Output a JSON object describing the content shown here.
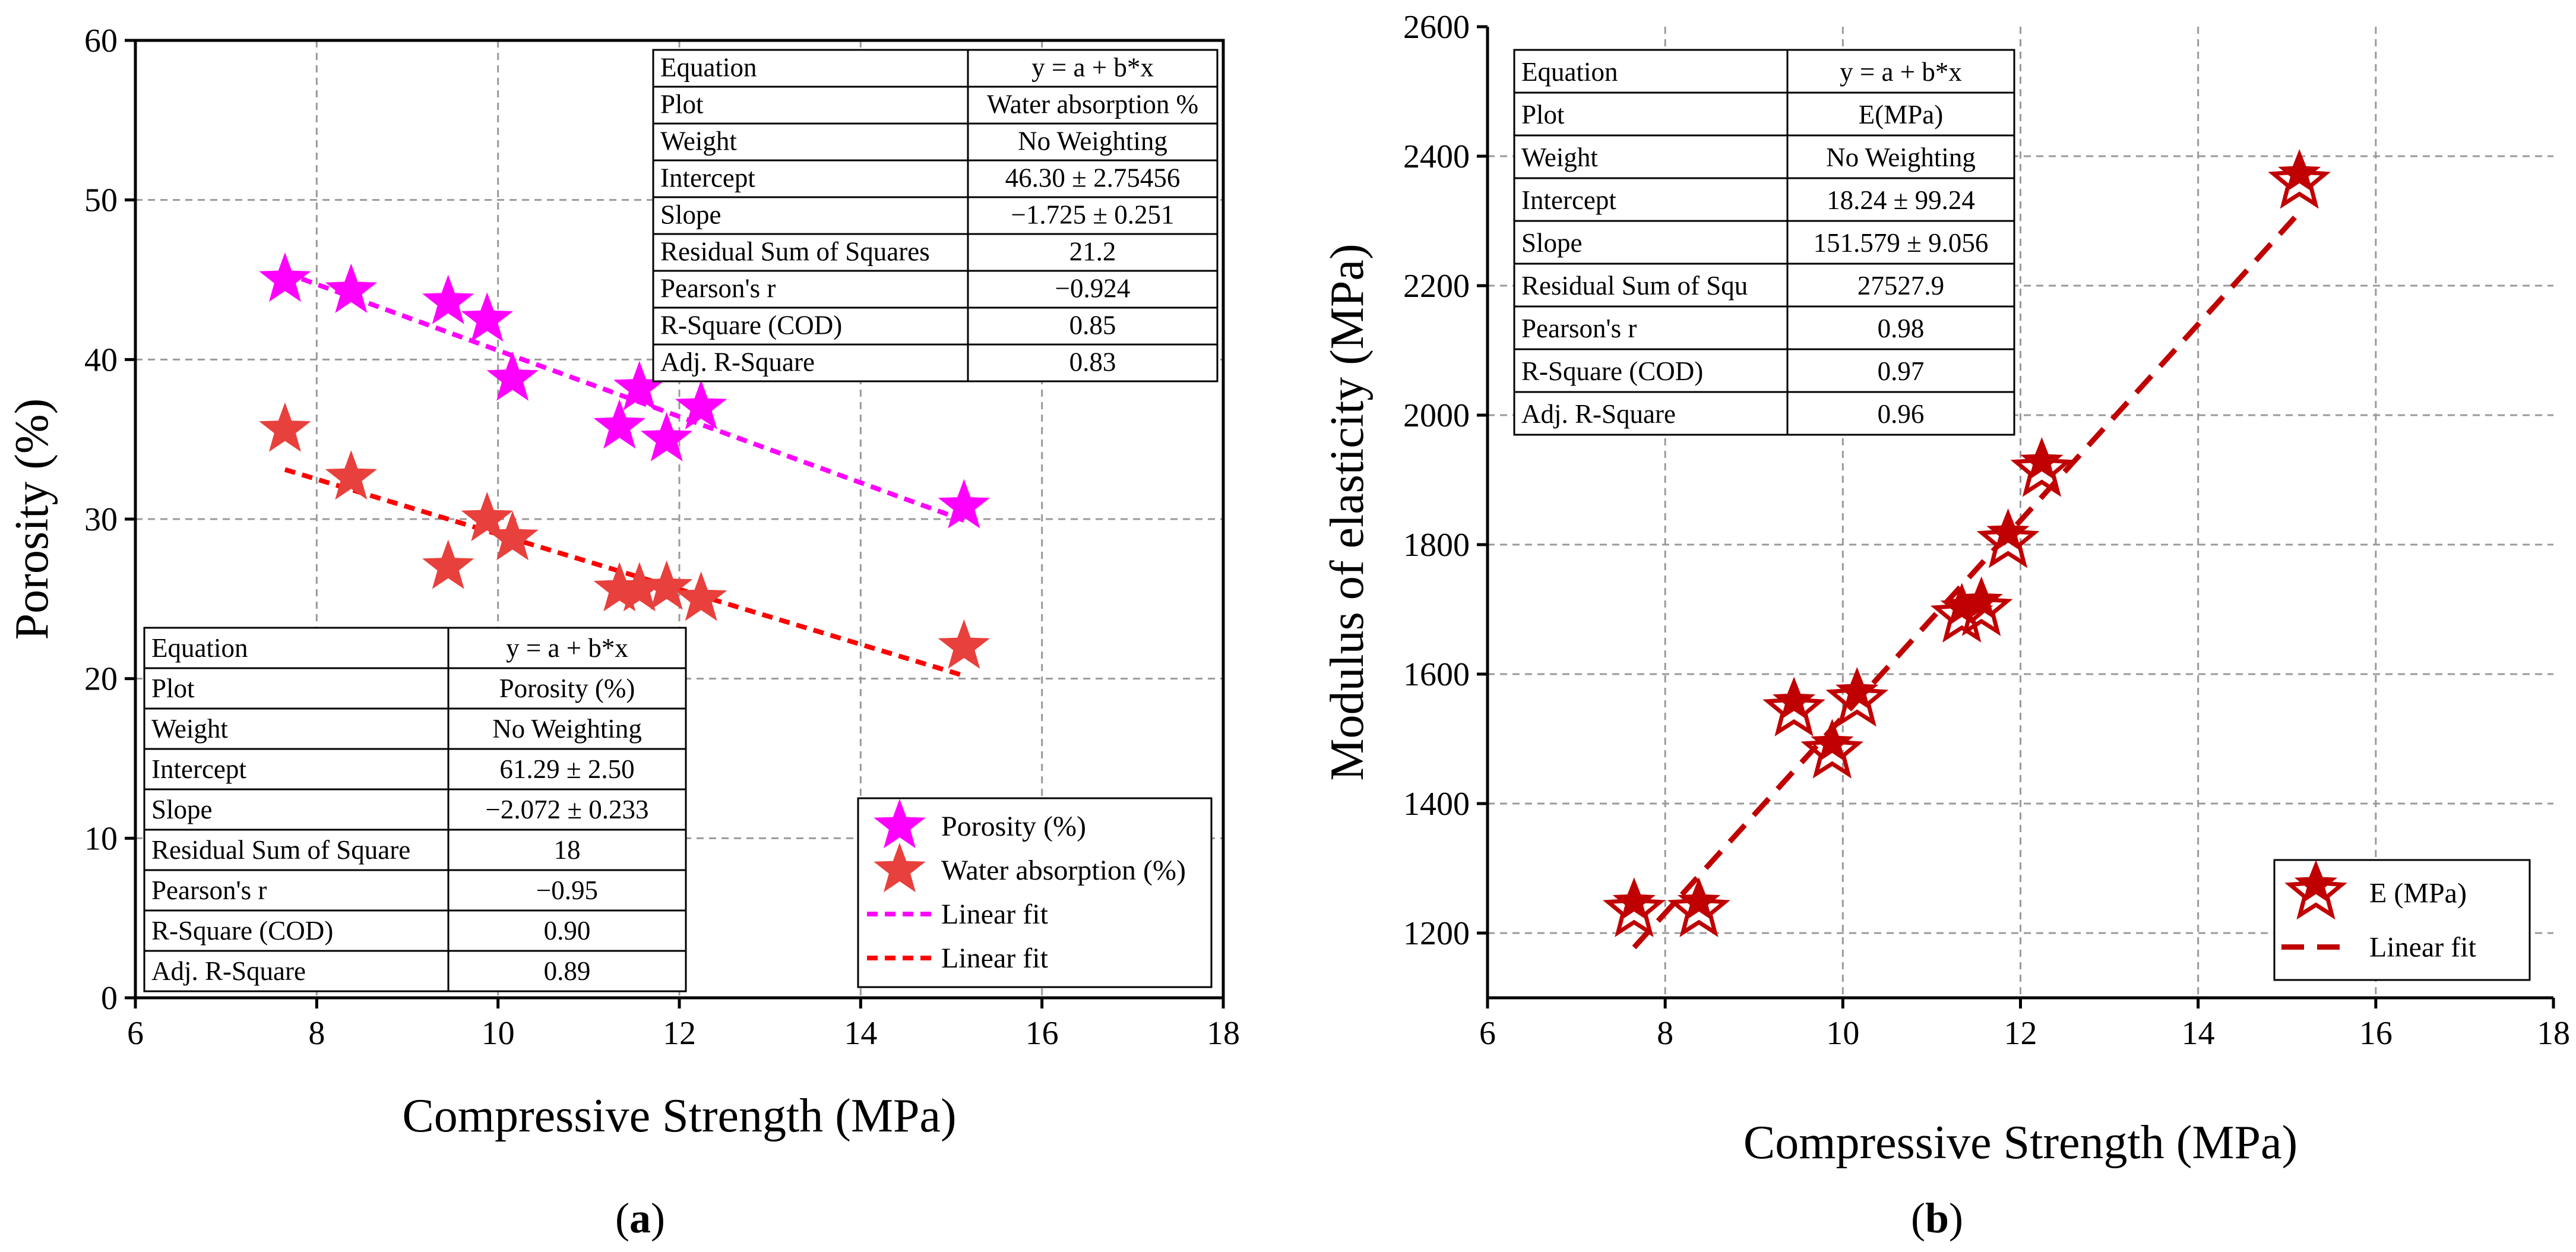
{
  "chart_data": [
    {
      "panel": "(a)",
      "panel_label_open": "(",
      "panel_label_letter": "a",
      "panel_label_close": ")",
      "type": "scatter",
      "xlabel": "Compressive Strength (MPa)",
      "ylabel": "Porosity (%)",
      "xlim": [
        6,
        18
      ],
      "ylim": [
        0,
        60
      ],
      "xticks": [
        6,
        8,
        10,
        12,
        14,
        16,
        18
      ],
      "yticks": [
        0,
        10,
        20,
        30,
        40,
        50,
        60
      ],
      "grid": true,
      "series": [
        {
          "name": "Porosity (%)",
          "color": "#ff00ff",
          "marker": "star",
          "x": [
            7.65,
            8.38,
            9.45,
            9.88,
            10.16,
            11.34,
            11.56,
            11.86,
            12.24,
            15.14
          ],
          "y": [
            45,
            44.3,
            43.6,
            42.5,
            38.8,
            35.8,
            38.2,
            35.0,
            37.0,
            30.8
          ]
        },
        {
          "name": "Water absorption (%)",
          "color": "#e8403c",
          "marker": "star",
          "x": [
            7.65,
            8.38,
            9.45,
            9.88,
            10.16,
            11.34,
            11.56,
            11.86,
            12.24,
            15.14
          ],
          "y": [
            35.6,
            32.6,
            27.0,
            30.0,
            28.8,
            25.6,
            25.6,
            25.7,
            25.0,
            22.0
          ]
        }
      ],
      "fits": [
        {
          "name": "Linear fit",
          "color": "#ff00ff",
          "intercept": 61.29,
          "slope": -2.072,
          "x_range": [
            7.65,
            15.14
          ]
        },
        {
          "name": "Linear fit",
          "color": "#ff0000",
          "intercept": 46.3,
          "slope": -1.725,
          "x_range": [
            7.65,
            15.14
          ]
        }
      ],
      "legend": {
        "position": "lower-right",
        "items": [
          {
            "label": "Porosity (%)",
            "kind": "star",
            "color": "#ff00ff"
          },
          {
            "label": "Water absorption (%)",
            "kind": "star",
            "color": "#e8403c"
          },
          {
            "label": "Linear fit",
            "kind": "line",
            "color": "#ff00ff"
          },
          {
            "label": "Linear fit",
            "kind": "line",
            "color": "#ff0000"
          }
        ]
      },
      "tables": [
        {
          "position": "top-right",
          "rows": [
            [
              "Equation",
              "y = a + b*x"
            ],
            [
              "Plot",
              "Water absorption %"
            ],
            [
              "Weight",
              "No Weighting"
            ],
            [
              "Intercept",
              "46.30 ± 2.75456"
            ],
            [
              "Slope",
              "−1.725 ± 0.251"
            ],
            [
              "Residual Sum of Squares",
              "21.2"
            ],
            [
              "Pearson's r",
              "−0.924"
            ],
            [
              "R-Square (COD)",
              "0.85"
            ],
            [
              "Adj. R-Square",
              "0.83"
            ]
          ]
        },
        {
          "position": "bottom-left",
          "rows": [
            [
              "Equation",
              "y = a + b*x"
            ],
            [
              "Plot",
              "Porosity (%)"
            ],
            [
              "Weight",
              "No Weighting"
            ],
            [
              "Intercept",
              "61.29 ± 2.50"
            ],
            [
              "Slope",
              "−2.072 ± 0.233"
            ],
            [
              "Residual Sum of Square",
              "18"
            ],
            [
              "Pearson's r",
              "−0.95"
            ],
            [
              "R-Square (COD)",
              "0.90"
            ],
            [
              "Adj. R-Square",
              "0.89"
            ]
          ]
        }
      ]
    },
    {
      "panel": "(b)",
      "panel_label_open": "(",
      "panel_label_letter": "b",
      "panel_label_close": ")",
      "type": "scatter",
      "xlabel": "Compressive Strength (MPa)",
      "ylabel": "Modulus of elasticity (MPa)",
      "xlim": [
        6,
        18
      ],
      "ylim": [
        1100,
        2600
      ],
      "xticks": [
        6,
        8,
        10,
        12,
        14,
        16,
        18
      ],
      "yticks": [
        1200,
        1400,
        1600,
        1800,
        2000,
        2200,
        2400,
        2600
      ],
      "grid": true,
      "series": [
        {
          "name": "E (MPa)",
          "color": "#c00000",
          "marker": "hollow-star",
          "x": [
            7.65,
            8.38,
            9.45,
            9.88,
            10.16,
            11.34,
            11.56,
            11.86,
            12.24,
            15.14
          ],
          "y": [
            1235,
            1235,
            1545,
            1480,
            1560,
            1690,
            1700,
            1805,
            1915,
            2360
          ]
        }
      ],
      "fits": [
        {
          "name": "Linear fit",
          "color": "#c00000",
          "intercept": 18.24,
          "slope": 151.579,
          "x_range": [
            7.65,
            15.14
          ]
        }
      ],
      "legend": {
        "position": "lower-right",
        "items": [
          {
            "label": "E (MPa)",
            "kind": "hollow-star",
            "color": "#c00000"
          },
          {
            "label": "Linear fit",
            "kind": "line",
            "color": "#c00000"
          }
        ]
      },
      "tables": [
        {
          "position": "top-left",
          "rows": [
            [
              "Equation",
              "y = a + b*x"
            ],
            [
              "Plot",
              "E(MPa)"
            ],
            [
              "Weight",
              "No Weighting"
            ],
            [
              "Intercept",
              "18.24 ± 99.24"
            ],
            [
              "Slope",
              "151.579 ± 9.056"
            ],
            [
              "Residual Sum of Squ",
              "27527.9"
            ],
            [
              "Pearson's r",
              "0.98"
            ],
            [
              "R-Square (COD)",
              "0.97"
            ],
            [
              "Adj. R-Square",
              "0.96"
            ]
          ]
        }
      ]
    }
  ]
}
